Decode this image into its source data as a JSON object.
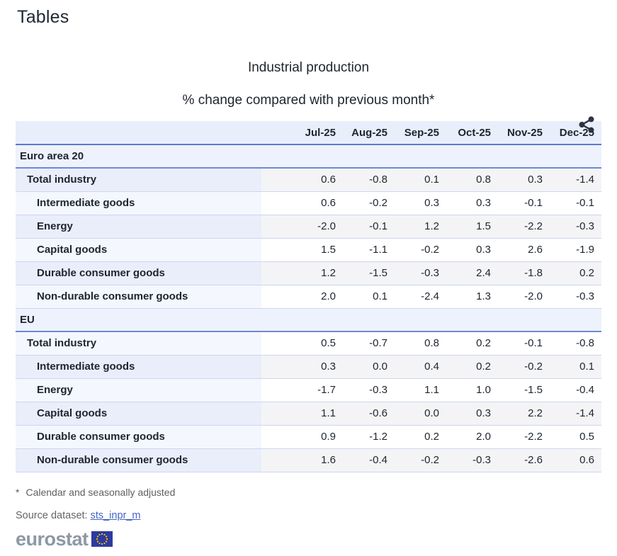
{
  "page_title": "Tables",
  "chart": {
    "title": "Industrial production",
    "subtitle": "% change compared with previous month*"
  },
  "table": {
    "months": [
      "Jul-25",
      "Aug-25",
      "Sep-25",
      "Oct-25",
      "Nov-25",
      "Dec-25"
    ],
    "sections": [
      {
        "label": "Euro area 20",
        "rows": [
          {
            "label": "Total industry",
            "indent": 1,
            "values": [
              "0.6",
              "-0.8",
              "0.1",
              "0.8",
              "0.3",
              "-1.4"
            ]
          },
          {
            "label": "Intermediate goods",
            "indent": 2,
            "values": [
              "0.6",
              "-0.2",
              "0.3",
              "0.3",
              "-0.1",
              "-0.1"
            ]
          },
          {
            "label": "Energy",
            "indent": 2,
            "values": [
              "-2.0",
              "-0.1",
              "1.2",
              "1.5",
              "-2.2",
              "-0.3"
            ]
          },
          {
            "label": "Capital goods",
            "indent": 2,
            "values": [
              "1.5",
              "-1.1",
              "-0.2",
              "0.3",
              "2.6",
              "-1.9"
            ]
          },
          {
            "label": "Durable consumer goods",
            "indent": 2,
            "values": [
              "1.2",
              "-1.5",
              "-0.3",
              "2.4",
              "-1.8",
              "0.2"
            ]
          },
          {
            "label": "Non-durable consumer goods",
            "indent": 2,
            "values": [
              "2.0",
              "0.1",
              "-2.4",
              "1.3",
              "-2.0",
              "-0.3"
            ]
          }
        ]
      },
      {
        "label": "EU",
        "rows": [
          {
            "label": "Total industry",
            "indent": 1,
            "values": [
              "0.5",
              "-0.7",
              "0.8",
              "0.2",
              "-0.1",
              "-0.8"
            ]
          },
          {
            "label": "Intermediate goods",
            "indent": 2,
            "values": [
              "0.3",
              "0.0",
              "0.4",
              "0.2",
              "-0.2",
              "0.1"
            ]
          },
          {
            "label": "Energy",
            "indent": 2,
            "values": [
              "-1.7",
              "-0.3",
              "1.1",
              "1.0",
              "-1.5",
              "-0.4"
            ]
          },
          {
            "label": "Capital goods",
            "indent": 2,
            "values": [
              "1.1",
              "-0.6",
              "0.0",
              "0.3",
              "2.2",
              "-1.4"
            ]
          },
          {
            "label": "Durable consumer goods",
            "indent": 2,
            "values": [
              "0.9",
              "-1.2",
              "0.2",
              "2.0",
              "-2.2",
              "0.5"
            ]
          },
          {
            "label": "Non-durable consumer goods",
            "indent": 2,
            "values": [
              "1.6",
              "-0.4",
              "-0.2",
              "-0.3",
              "-2.6",
              "0.6"
            ]
          }
        ]
      }
    ]
  },
  "footnote": {
    "marker": "*",
    "text": "Calendar and seasonally adjusted"
  },
  "source": {
    "label": "Source dataset: ",
    "link_text": "sts_inpr_m"
  },
  "logo": {
    "text": "eurostat"
  },
  "icons": {
    "share": "share-icon",
    "eu_flag": "eu-flag-icon"
  },
  "colors": {
    "accent_border": "#5b79ce",
    "section_border": "#7088d4",
    "row_border": "#ccd6ef",
    "header_bg": "#e9eefb",
    "section_bg": "#edf2fc",
    "label_bg": "#f4f7fd",
    "label_striped_bg": "#e9eefa",
    "striped_bg": "#f4f4f6",
    "link": "#4263c6",
    "logo_gray": "#8d98a5",
    "eu_blue": "#2d3b9e",
    "star_yellow": "#ffcc00",
    "text_dark": "#1d2530",
    "muted_text": "#666666"
  }
}
